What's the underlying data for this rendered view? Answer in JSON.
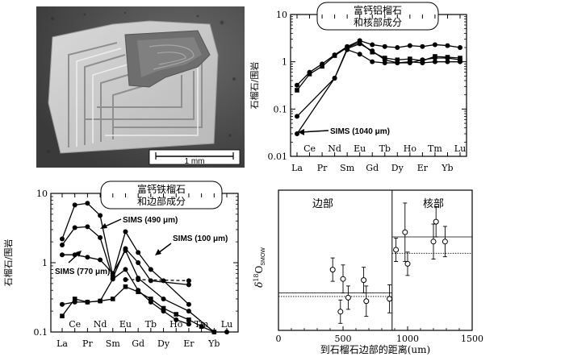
{
  "photo": {
    "scale_label": "1 mm"
  },
  "charts": {
    "chart_data": [
      {
        "type": "line",
        "title_lines": [
          "富钙铝榴石",
          "和核部成分"
        ],
        "ylabel": "石榴石/围岩",
        "yscale": "log",
        "ylim": [
          0.01,
          10
        ],
        "yticks": [
          "0.01",
          "0.1",
          "1",
          "10"
        ],
        "categories": [
          "La",
          "Ce",
          "Pr",
          "Nd",
          "Sm",
          "Eu",
          "Gd",
          "Tb",
          "Dy",
          "Ho",
          "Er",
          "Tm",
          "Yb",
          "Lu"
        ],
        "annotation": "SIMS (1040 μm)",
        "series": [
          {
            "marker": "square",
            "points": [
              [
                "La",
                0.25
              ],
              [
                "Ce",
                0.55
              ],
              [
                "Pr",
                0.8
              ],
              [
                "Nd",
                1.35
              ],
              [
                "Sm",
                2.0
              ],
              [
                "Eu",
                2.6
              ],
              [
                "Gd",
                1.6
              ],
              [
                "Tb",
                1.2
              ],
              [
                "Dy",
                1.1
              ],
              [
                "Ho",
                1.15
              ],
              [
                "Er",
                1.05
              ],
              [
                "Tm",
                1.3
              ],
              [
                "Yb",
                1.25
              ],
              [
                "Lu",
                1.2
              ]
            ]
          },
          {
            "marker": "circle",
            "points": [
              [
                "La",
                0.32
              ],
              [
                "Ce",
                0.6
              ],
              [
                "Pr",
                0.9
              ],
              [
                "Nd",
                1.4
              ],
              [
                "Sm",
                2.1
              ],
              [
                "Eu",
                2.8
              ],
              [
                "Gd",
                2.3
              ],
              [
                "Tb",
                2.1
              ],
              [
                "Dy",
                2.0
              ],
              [
                "Ho",
                2.2
              ],
              [
                "Er",
                2.1
              ],
              [
                "Tm",
                2.3
              ],
              [
                "Yb",
                2.2
              ],
              [
                "Lu",
                2.0
              ]
            ]
          },
          {
            "marker": "circle",
            "points": [
              [
                "La",
                0.07
              ],
              [
                "Nd",
                0.45
              ],
              [
                "Sm",
                1.9
              ],
              [
                "Eu",
                2.4
              ],
              [
                "Gd",
                1.7
              ],
              [
                "Tb",
                1.1
              ],
              [
                "Dy",
                0.95
              ],
              [
                "Ho",
                0.95
              ],
              [
                "Er",
                1.1
              ],
              [
                "Tm",
                1.2
              ],
              [
                "Yb",
                1.2
              ],
              [
                "Lu",
                1.1
              ]
            ]
          },
          {
            "marker": "circle",
            "points": [
              [
                "La",
                0.03
              ],
              [
                "Nd",
                0.45
              ],
              [
                "Sm",
                1.8
              ],
              [
                "Eu",
                1.45
              ],
              [
                "Gd",
                1.0
              ],
              [
                "Tb",
                0.95
              ],
              [
                "Dy",
                0.95
              ],
              [
                "Ho",
                1.0
              ],
              [
                "Er",
                0.95
              ],
              [
                "Tm",
                1.0
              ],
              [
                "Yb",
                1.0
              ],
              [
                "Lu",
                1.0
              ]
            ]
          }
        ]
      },
      {
        "type": "line",
        "title_lines": [
          "富钙铁榴石",
          "和边部成分"
        ],
        "ylabel": "石榴石/围岩",
        "yscale": "log",
        "ylim": [
          0.1,
          10
        ],
        "yticks": [
          "0.1",
          "1",
          "10"
        ],
        "categories": [
          "La",
          "Ce",
          "Pr",
          "Nd",
          "Sm",
          "Eu",
          "Gd",
          "Tb",
          "Dy",
          "Ho",
          "Er",
          "Tm",
          "Yb",
          "Lu"
        ],
        "annotations": [
          "SIMS (490 μm)",
          "SIMS (100 μm)",
          "SIMS (770 μm)"
        ],
        "series": [
          {
            "marker": "circle",
            "style": "solid",
            "points": [
              [
                "La",
                2.2
              ],
              [
                "Ce",
                6.8
              ],
              [
                "Pr",
                7.2
              ],
              [
                "Nd",
                4.8
              ],
              [
                "Sm",
                0.65
              ],
              [
                "Eu",
                2.8
              ],
              [
                "Gd",
                1.4
              ],
              [
                "Tb",
                0.8
              ],
              [
                "Dy",
                0.55
              ],
              [
                "Er",
                0.25
              ]
            ]
          },
          {
            "marker": "circle",
            "style": "solid",
            "points": [
              [
                "La",
                1.8
              ],
              [
                "Ce",
                3.2
              ],
              [
                "Pr",
                3.3
              ],
              [
                "Nd",
                2.3
              ],
              [
                "Sm",
                0.6
              ],
              [
                "Eu",
                1.6
              ],
              [
                "Gd",
                1.0
              ],
              [
                "Tb",
                0.55
              ],
              [
                "Er",
                0.48
              ]
            ]
          },
          {
            "marker": "circle",
            "style": "solid",
            "points": [
              [
                "La",
                1.3
              ],
              [
                "Ce",
                1.3
              ],
              [
                "Pr",
                1.2
              ],
              [
                "Nd",
                1.1
              ],
              [
                "Sm",
                0.7
              ],
              [
                "Eu",
                1.5
              ],
              [
                "Gd",
                0.6
              ],
              [
                "Dy",
                0.3
              ],
              [
                "Er",
                0.2
              ],
              [
                "Yb",
                0.1
              ],
              [
                "Lu",
                0.1
              ]
            ]
          },
          {
            "marker": "circle",
            "style": "dashed",
            "points": [
              [
                "Eu",
                0.57
              ],
              [
                "Gd",
                0.57
              ],
              [
                "Er",
                0.55
              ]
            ]
          },
          {
            "marker": "square",
            "style": "solid",
            "points": [
              [
                "La",
                0.17
              ],
              [
                "Ce",
                0.3
              ],
              [
                "Pr",
                0.27
              ],
              [
                "Nd",
                0.28
              ],
              [
                "Sm",
                0.3
              ],
              [
                "Eu",
                0.45
              ],
              [
                "Gd",
                0.38
              ],
              [
                "Tb",
                0.3
              ],
              [
                "Dy",
                0.22
              ],
              [
                "Ho",
                0.18
              ],
              [
                "Er",
                0.15
              ],
              [
                "Tm",
                0.12
              ],
              [
                "Yb",
                0.1
              ]
            ]
          },
          {
            "marker": "circle",
            "style": "solid",
            "points": [
              [
                "La",
                0.25
              ],
              [
                "Ce",
                0.27
              ],
              [
                "Pr",
                0.27
              ],
              [
                "Nd",
                0.28
              ],
              [
                "Sm",
                0.58
              ],
              [
                "Eu",
                0.8
              ],
              [
                "Gd",
                0.4
              ],
              [
                "Tb",
                0.27
              ],
              [
                "Dy",
                0.2
              ],
              [
                "Ho",
                0.15
              ],
              [
                "Er",
                0.13
              ]
            ]
          }
        ]
      },
      {
        "type": "scatter",
        "ylabel_parts": {
          "delta": "δ",
          "sup": "18",
          "main": "O",
          "sub": "SMOW"
        },
        "xlabel": "到石榴石边部的距离(um)",
        "xlim": [
          0,
          1500
        ],
        "xticks": [
          "0",
          "500",
          "1000",
          "1500"
        ],
        "ylim": [
          -2,
          10
        ],
        "region_labels": [
          "边部",
          "核部"
        ],
        "divider_x": 880,
        "points": [
          {
            "x": 420,
            "y": 3.2,
            "err": 1.0
          },
          {
            "x": 480,
            "y": -0.4,
            "err": 1.0
          },
          {
            "x": 500,
            "y": 2.4,
            "err": 1.2
          },
          {
            "x": 540,
            "y": 0.8,
            "err": 1.0
          },
          {
            "x": 660,
            "y": 2.3,
            "err": 1.1
          },
          {
            "x": 680,
            "y": 0.5,
            "err": 1.3
          },
          {
            "x": 860,
            "y": 0.7,
            "err": 1.2
          },
          {
            "x": 910,
            "y": 4.9,
            "err": 1.0
          },
          {
            "x": 980,
            "y": 6.4,
            "err": 2.5
          },
          {
            "x": 1000,
            "y": 3.7,
            "err": 1.0
          },
          {
            "x": 1200,
            "y": 5.6,
            "err": 1.5
          },
          {
            "x": 1220,
            "y": 7.3,
            "err": 1.3
          },
          {
            "x": 1290,
            "y": 5.6,
            "err": 1.3
          }
        ],
        "mean_lines": [
          {
            "x_from": 0,
            "x_to": 880,
            "y": 1.2,
            "style": "solid"
          },
          {
            "x_from": 0,
            "x_to": 880,
            "y": 0.9,
            "style": "dotted"
          },
          {
            "x_from": 880,
            "x_to": 1500,
            "y": 6.0,
            "style": "solid"
          },
          {
            "x_from": 880,
            "x_to": 1500,
            "y": 4.6,
            "style": "dotted"
          }
        ]
      }
    ]
  }
}
